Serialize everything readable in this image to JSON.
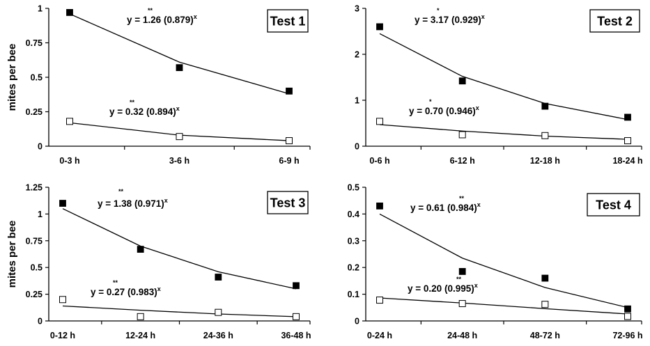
{
  "colors": {
    "filled_marker": "#000000",
    "open_marker": "#ffffff",
    "line": "#000000",
    "text": "#000000"
  },
  "chart_data": [
    {
      "type": "scatter",
      "title": "Test 1",
      "ylabel": "mites per bee",
      "ylim": [
        0,
        1
      ],
      "yticks": [
        "0",
        "0.25",
        "0.5",
        "0.75",
        "1"
      ],
      "categories": [
        "0-3 h",
        "3-6 h",
        "6-9 h"
      ],
      "series": [
        {
          "marker": "filled",
          "values": [
            0.97,
            0.57,
            0.4
          ],
          "fit": [
            0.96,
            0.61,
            0.38
          ],
          "equation": {
            "prefix": "y = ",
            "coef": "1.26",
            "base": "(0.879)",
            "exp": "x",
            "sig": "**"
          }
        },
        {
          "marker": "open",
          "values": [
            0.18,
            0.07,
            0.04
          ],
          "fit": [
            0.17,
            0.08,
            0.04
          ],
          "equation": {
            "prefix": "y = ",
            "coef": "0.32",
            "base": "(0.894)",
            "exp": "x",
            "sig": "**"
          }
        }
      ]
    },
    {
      "type": "scatter",
      "title": "Test 2",
      "ylabel": "",
      "ylim": [
        0,
        3
      ],
      "yticks": [
        "0",
        "1",
        "2",
        "3"
      ],
      "categories": [
        "0-6 h",
        "6-12 h",
        "12-18 h",
        "18-24 h"
      ],
      "series": [
        {
          "marker": "filled",
          "values": [
            2.6,
            1.42,
            0.87,
            0.63
          ],
          "fit": [
            2.45,
            1.52,
            0.93,
            0.58
          ],
          "equation": {
            "prefix": "y = ",
            "coef": "3.17",
            "base": "(0.929)",
            "exp": "x",
            "sig": "*"
          }
        },
        {
          "marker": "open",
          "values": [
            0.54,
            0.25,
            0.23,
            0.12
          ],
          "fit": [
            0.47,
            0.33,
            0.22,
            0.15
          ],
          "equation": {
            "prefix": "y = ",
            "coef": "0.70",
            "base": "(0.946)",
            "exp": "x",
            "sig": "*"
          }
        }
      ]
    },
    {
      "type": "scatter",
      "title": "Test 3",
      "ylabel": "mites per bee",
      "ylim": [
        0,
        1.25
      ],
      "yticks": [
        "0",
        "0.25",
        "0.5",
        "0.75",
        "1",
        "1.25"
      ],
      "categories": [
        "0-12 h",
        "12-24 h",
        "24-36 h",
        "36-48  h"
      ],
      "series": [
        {
          "marker": "filled",
          "values": [
            1.1,
            0.67,
            0.41,
            0.33
          ],
          "fit": [
            1.05,
            0.7,
            0.46,
            0.3
          ],
          "equation": {
            "prefix": "y = ",
            "coef": "1.38",
            "base": "(0.971)",
            "exp": "x",
            "sig": "**"
          }
        },
        {
          "marker": "open",
          "values": [
            0.2,
            0.04,
            0.08,
            0.04
          ],
          "fit": [
            0.14,
            0.1,
            0.065,
            0.04
          ],
          "equation": {
            "prefix": "y = ",
            "coef": "0.27",
            "base": "(0.983)",
            "exp": "x",
            "sig": "**"
          }
        }
      ]
    },
    {
      "type": "scatter",
      "title": "Test 4",
      "ylabel": "",
      "ylim": [
        0,
        0.5
      ],
      "yticks": [
        "0",
        "0.1",
        "0.2",
        "0.3",
        "0.4",
        "0.5"
      ],
      "categories": [
        "0-24 h",
        "24-48 h",
        "48-72 h",
        "72-96 h"
      ],
      "series": [
        {
          "marker": "filled",
          "values": [
            0.43,
            0.185,
            0.16,
            0.045
          ],
          "fit": [
            0.4,
            0.235,
            0.125,
            0.05
          ],
          "equation": {
            "prefix": "y = ",
            "coef": "0.61",
            "base": "(0.984)",
            "exp": "x",
            "sig": "**"
          }
        },
        {
          "marker": "open",
          "values": [
            0.078,
            0.065,
            0.062,
            0.017
          ],
          "fit": [
            0.086,
            0.067,
            0.046,
            0.026
          ],
          "equation": {
            "prefix": "y = ",
            "coef": "0.20",
            "base": "(0.995)",
            "exp": "x",
            "sig": "**"
          }
        }
      ]
    }
  ]
}
